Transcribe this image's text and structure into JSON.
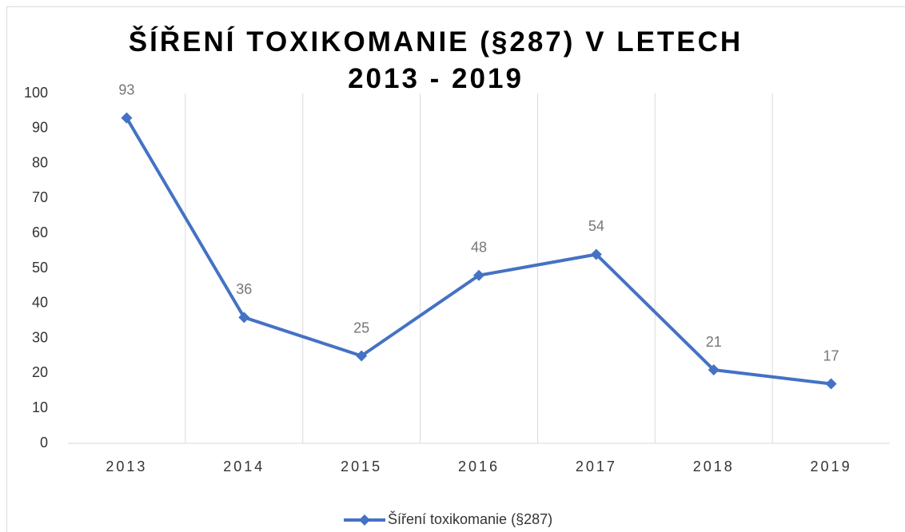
{
  "chart_data": {
    "type": "line",
    "title": "ŠÍŘENÍ TOXIKOMANIE (§287) V LETECH 2013 - 2019",
    "categories": [
      "2013",
      "2014",
      "2015",
      "2016",
      "2017",
      "2018",
      "2019"
    ],
    "series": [
      {
        "name": "Šíření toxikomanie (§287)",
        "color": "#4472c4",
        "values": [
          93,
          36,
          25,
          48,
          54,
          21,
          17
        ]
      }
    ],
    "ylim": [
      0,
      100
    ],
    "yticks": [
      0,
      10,
      20,
      30,
      40,
      50,
      60,
      70,
      80,
      90,
      100
    ],
    "legend": "bottom",
    "data_labels": true
  }
}
